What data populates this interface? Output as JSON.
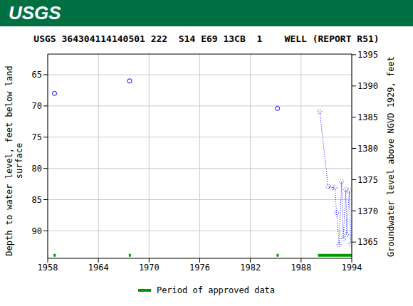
{
  "header": {
    "logo": "USGS"
  },
  "chart_data": {
    "type": "line",
    "title": "USGS 364304114140501 222  S14 E69 13CB  1    WELL (REPORT R51)",
    "y_label": "Depth to water level, feet below land surface",
    "y2_label": "Groundwater level above NGVD 1929, feet",
    "x": [
      1958.8,
      1967.7,
      1985.2,
      1990.2,
      1991.2,
      1991.6,
      1992.0,
      1992.2,
      1992.5,
      1992.8,
      1993.0,
      1993.3,
      1993.4,
      1993.7,
      1993.9
    ],
    "series": [
      {
        "color": "#0000ff",
        "marker": "circle",
        "line_style": "none",
        "values": [
          68.0,
          66.0,
          70.4,
          null,
          null,
          null,
          null,
          null,
          null,
          null,
          null,
          null,
          null,
          null,
          null
        ]
      },
      {
        "color": "#0000ff",
        "marker": "circle",
        "line_style": "dotted",
        "values": [
          null,
          null,
          null,
          70.9,
          82.9,
          83.1,
          83.1,
          87.1,
          92.2,
          82.1,
          91.3,
          83.4,
          90.6,
          83.6,
          92.1
        ]
      }
    ],
    "xlim": [
      1958,
      1994
    ],
    "xticks": [
      1958,
      1964,
      1970,
      1976,
      1982,
      1988,
      1994
    ],
    "ylim": [
      94.4,
      61.7
    ],
    "yticks": [
      65,
      70,
      75,
      80,
      85,
      90
    ],
    "y2lim": [
      1362.4,
      1395.1
    ],
    "y2ticks": [
      1365,
      1370,
      1375,
      1380,
      1385,
      1390,
      1395
    ],
    "grid": true,
    "approved_periods": {
      "name": "Period of approved data",
      "color": "#009900",
      "ranges": [
        [
          1958.7,
          1958.95
        ],
        [
          1967.6,
          1967.85
        ],
        [
          1985.1,
          1985.35
        ],
        [
          1990.0,
          1994
        ]
      ]
    }
  }
}
